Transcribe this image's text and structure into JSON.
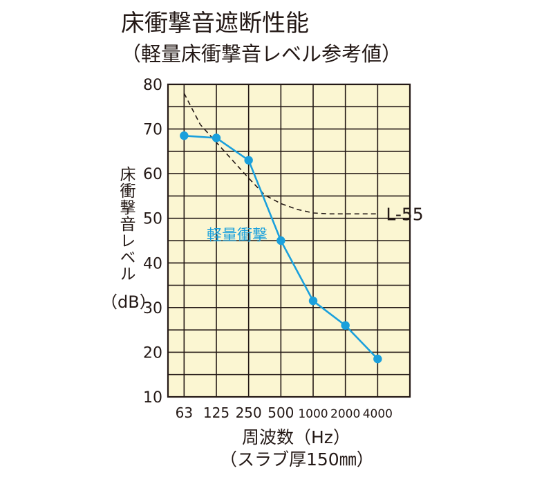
{
  "chart_data": {
    "type": "line",
    "title": "床衝撃音遮断性能",
    "subtitle": "（軽量床衝撃音レベル参考値）",
    "ylabel": "床衝撃音レベル",
    "yunit": "（dB）",
    "xlabel": "周波数（Hz）",
    "xsublabel": "（スラブ厚150㎜）",
    "categories": [
      "63",
      "125",
      "250",
      "500",
      "1000",
      "2000",
      "4000"
    ],
    "ylim": [
      10,
      80
    ],
    "yticks": [
      "80",
      "70",
      "60",
      "50",
      "40",
      "30",
      "20",
      "10"
    ],
    "grid": true,
    "plot_background": "#fbf6d2",
    "series": [
      {
        "name": "軽量衝撃",
        "style": "solid-with-markers",
        "color": "#1aa0dc",
        "values": [
          68.5,
          68,
          63,
          45,
          31.5,
          26,
          18.5
        ]
      },
      {
        "name": "L-55",
        "style": "dashed",
        "color": "#231815",
        "curve": [
          [
            0,
            78
          ],
          [
            0.5,
            71
          ],
          [
            1,
            67
          ],
          [
            1.5,
            63
          ],
          [
            2,
            59
          ],
          [
            2.5,
            55.2
          ],
          [
            3,
            53.3
          ],
          [
            3.5,
            52
          ],
          [
            4,
            51.2
          ],
          [
            4.5,
            51
          ],
          [
            5,
            51
          ],
          [
            5.5,
            51
          ],
          [
            6,
            51
          ]
        ]
      }
    ]
  }
}
